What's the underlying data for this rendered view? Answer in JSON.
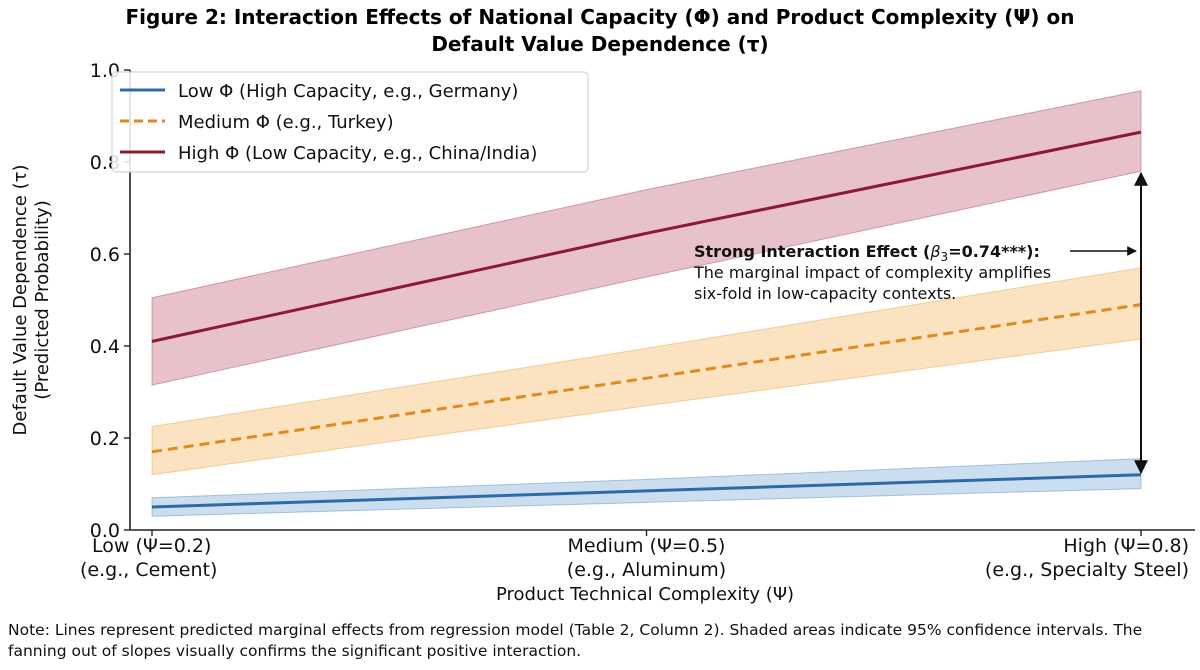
{
  "chart_data": {
    "type": "line",
    "title_lines": [
      "Figure 2: Interaction Effects of National Capacity (Φ) and Product Complexity (Ψ) on",
      "Default Value Dependence (τ)"
    ],
    "xlabel": "Product Technical Complexity (Ψ)",
    "ylabel_lines": [
      "Default Value Dependence (τ)",
      "(Predicted Probability)"
    ],
    "x": [
      0.2,
      0.5,
      0.8
    ],
    "xlim": [
      0.2,
      0.8
    ],
    "ylim": [
      0.0,
      1.0
    ],
    "y_ticks": [
      0.0,
      0.2,
      0.4,
      0.6,
      0.8,
      1.0
    ],
    "y_tick_labels": [
      "0.0",
      "0.2",
      "0.4",
      "0.6",
      "0.8",
      "1.0"
    ],
    "x_ticks": [
      {
        "value": 0.2,
        "line1": "Low (Ψ=0.2)",
        "line2": "(e.g., Cement)"
      },
      {
        "value": 0.5,
        "line1": "Medium (Ψ=0.5)",
        "line2": "(e.g., Aluminum)"
      },
      {
        "value": 0.8,
        "line1": "High (Ψ=0.8)",
        "line2": "(e.g., Specialty Steel)"
      }
    ],
    "grid": false,
    "legend_position": "top-left",
    "series": [
      {
        "name": "Low Φ (High Capacity, e.g., Germany)",
        "color": "#2f6aa8",
        "fill": "#a8c8e6",
        "style": "solid",
        "values": [
          0.05,
          0.085,
          0.12
        ],
        "ci_low": [
          0.03,
          0.06,
          0.09
        ],
        "ci_high": [
          0.07,
          0.11,
          0.155
        ]
      },
      {
        "name": "Medium Φ (e.g., Turkey)",
        "color": "#e08a1e",
        "fill": "#f8cf96",
        "style": "dashed",
        "values": [
          0.17,
          0.33,
          0.49
        ],
        "ci_low": [
          0.12,
          0.27,
          0.415
        ],
        "ci_high": [
          0.225,
          0.395,
          0.57
        ]
      },
      {
        "name": "High Φ (Low Capacity, e.g., China/India)",
        "color": "#8b1a33",
        "fill": "#d99aa8",
        "style": "solid",
        "values": [
          0.41,
          0.645,
          0.865
        ],
        "ci_low": [
          0.315,
          0.55,
          0.78
        ],
        "ci_high": [
          0.505,
          0.74,
          0.955
        ]
      }
    ],
    "annotation": {
      "bold_prefix": "Strong Interaction Effect (",
      "beta_symbol": "β",
      "beta_sub": "3",
      "bold_suffix": "=0.74***):",
      "line2": "The marginal impact of complexity amplifies",
      "line3": "six-fold in low-capacity contexts.",
      "arrow_x": 0.8,
      "arrow_from_y": 0.12,
      "arrow_to_y": 0.78
    }
  },
  "note": "Note: Lines represent predicted marginal effects from regression model (Table 2, Column 2). Shaded areas indicate 95% confidence intervals. The fanning out of slopes visually confirms the significant positive interaction."
}
